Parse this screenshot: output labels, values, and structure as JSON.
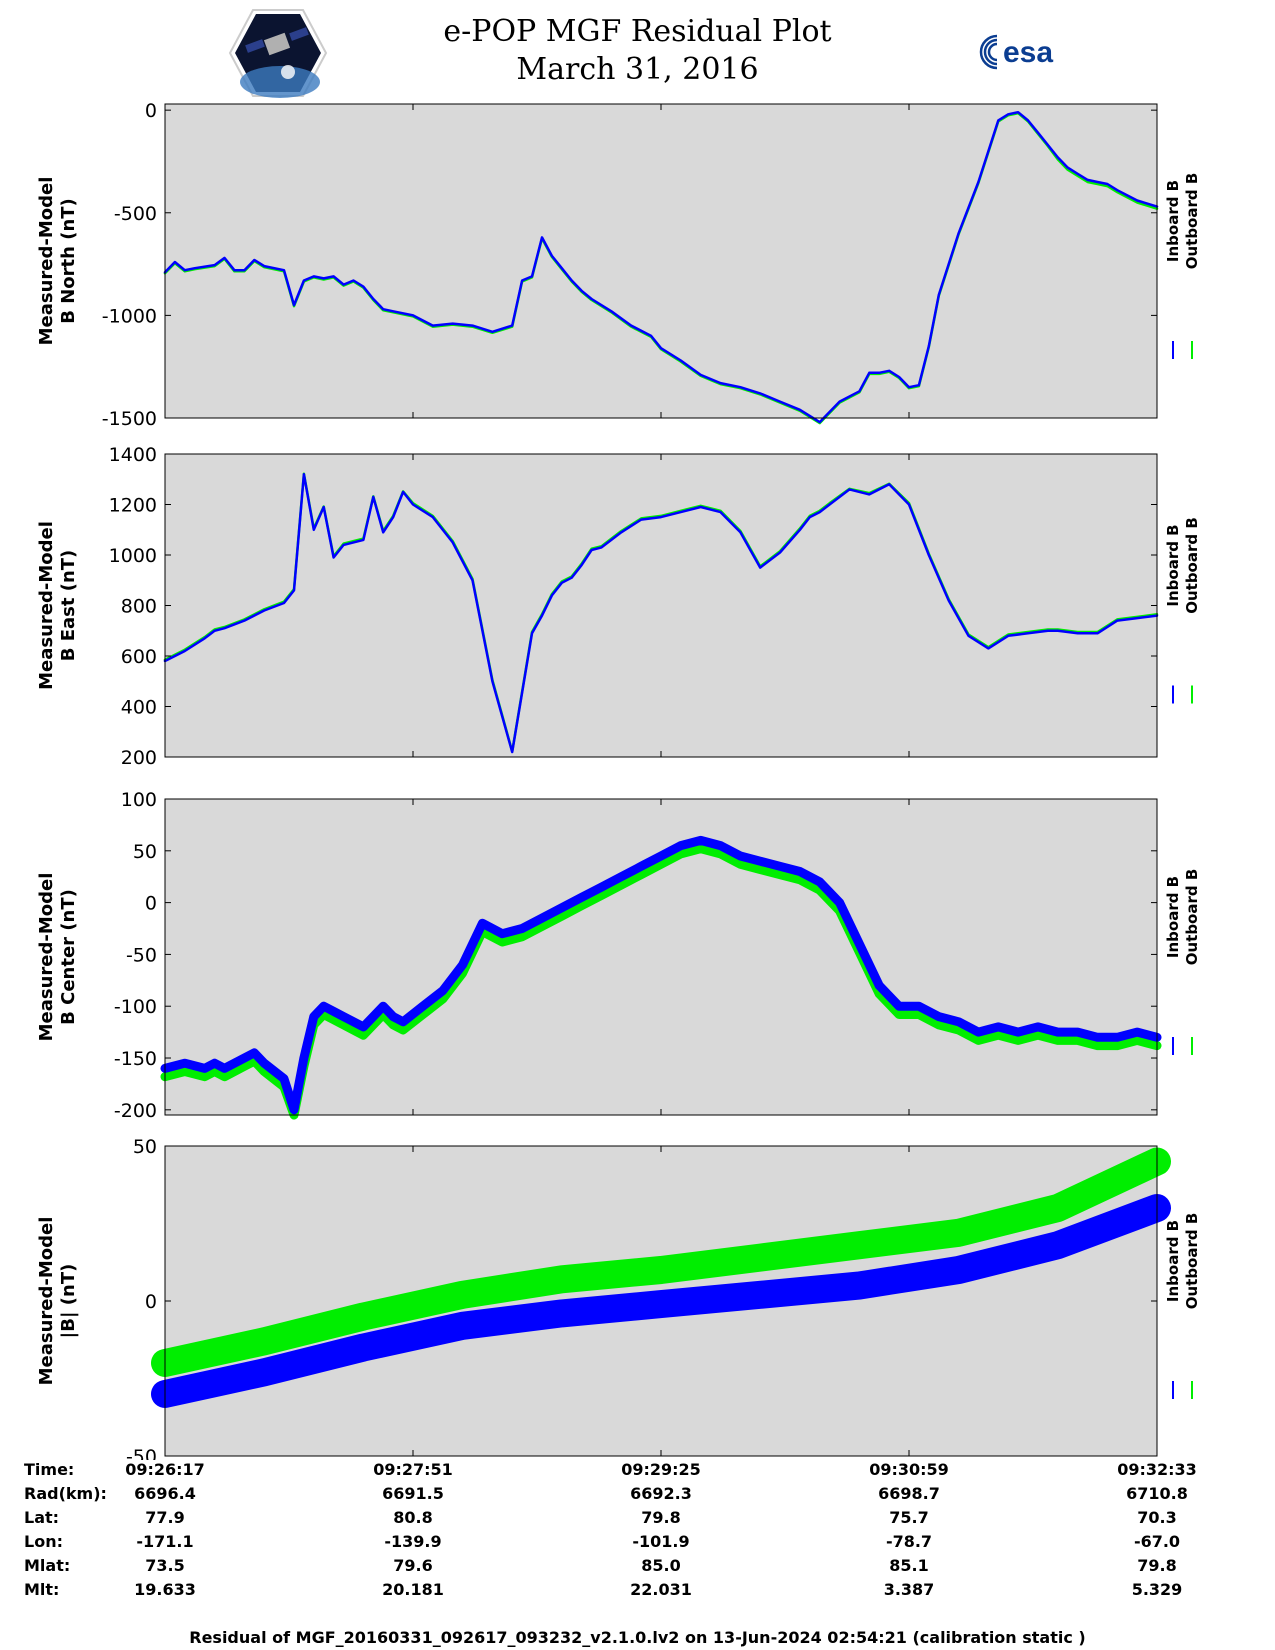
{
  "header": {
    "title": "e-POP MGF Residual Plot",
    "subtitle": "March 31, 2016",
    "left_logo_icon": "epop-satellite-logo",
    "right_logo_text": "esa"
  },
  "colors": {
    "inboard": "#0000ff",
    "outboard": "#00ee00",
    "plot_background": "#d9d9d9"
  },
  "chart_data": [
    {
      "type": "line",
      "ylabel": [
        "Measured-Model",
        "B North (nT)"
      ],
      "ylim": [
        -1500,
        30
      ],
      "yticks": [
        0,
        -500,
        -1000,
        -1500
      ],
      "xlim": [
        0,
        1
      ],
      "legend": [
        "Inboard B",
        "Outboard B"
      ],
      "series": [
        {
          "name": "Inboard B",
          "x": [
            0,
            0.01,
            0.02,
            0.03,
            0.05,
            0.06,
            0.07,
            0.08,
            0.09,
            0.1,
            0.12,
            0.13,
            0.14,
            0.15,
            0.16,
            0.17,
            0.18,
            0.19,
            0.2,
            0.21,
            0.22,
            0.23,
            0.25,
            0.27,
            0.29,
            0.31,
            0.33,
            0.35,
            0.36,
            0.37,
            0.38,
            0.39,
            0.4,
            0.41,
            0.42,
            0.43,
            0.45,
            0.47,
            0.49,
            0.5,
            0.52,
            0.54,
            0.56,
            0.58,
            0.6,
            0.62,
            0.64,
            0.66,
            0.68,
            0.7,
            0.71,
            0.72,
            0.73,
            0.74,
            0.75,
            0.76,
            0.77,
            0.78,
            0.8,
            0.82,
            0.84,
            0.85,
            0.86,
            0.87,
            0.88,
            0.89,
            0.9,
            0.91,
            0.92,
            0.93,
            0.94,
            0.95,
            0.96,
            0.98,
            1.0
          ],
          "values": [
            -790,
            -740,
            -780,
            -770,
            -755,
            -720,
            -780,
            -780,
            -730,
            -760,
            -780,
            -950,
            -830,
            -810,
            -820,
            -810,
            -850,
            -830,
            -860,
            -920,
            -970,
            -980,
            -1000,
            -1050,
            -1040,
            -1050,
            -1080,
            -1050,
            -830,
            -810,
            -620,
            -710,
            -770,
            -830,
            -880,
            -920,
            -980,
            -1050,
            -1100,
            -1160,
            -1220,
            -1290,
            -1330,
            -1350,
            -1380,
            -1420,
            -1460,
            -1520,
            -1420,
            -1370,
            -1280,
            -1280,
            -1270,
            -1300,
            -1350,
            -1340,
            -1150,
            -900,
            -600,
            -350,
            -50,
            -20,
            -10,
            -50,
            -110,
            -170,
            -230,
            -280,
            -310,
            -340,
            -350,
            -360,
            -390,
            -440,
            -470
          ]
        },
        {
          "name": "Outboard B",
          "x": [
            0,
            0.01,
            0.02,
            0.03,
            0.05,
            0.06,
            0.07,
            0.08,
            0.09,
            0.1,
            0.12,
            0.13,
            0.14,
            0.15,
            0.16,
            0.17,
            0.18,
            0.19,
            0.2,
            0.21,
            0.22,
            0.23,
            0.25,
            0.27,
            0.29,
            0.31,
            0.33,
            0.35,
            0.36,
            0.37,
            0.38,
            0.39,
            0.4,
            0.41,
            0.42,
            0.43,
            0.45,
            0.47,
            0.49,
            0.5,
            0.52,
            0.54,
            0.56,
            0.58,
            0.6,
            0.62,
            0.64,
            0.66,
            0.68,
            0.7,
            0.71,
            0.72,
            0.73,
            0.74,
            0.75,
            0.76,
            0.77,
            0.78,
            0.8,
            0.82,
            0.84,
            0.85,
            0.86,
            0.87,
            0.88,
            0.89,
            0.9,
            0.91,
            0.92,
            0.93,
            0.94,
            0.95,
            0.96,
            0.98,
            1.0
          ],
          "values": [
            -795,
            -745,
            -785,
            -775,
            -760,
            -725,
            -785,
            -785,
            -735,
            -765,
            -785,
            -955,
            -835,
            -815,
            -825,
            -815,
            -855,
            -835,
            -865,
            -925,
            -975,
            -985,
            -1005,
            -1055,
            -1045,
            -1055,
            -1085,
            -1055,
            -835,
            -815,
            -625,
            -715,
            -775,
            -835,
            -885,
            -925,
            -985,
            -1055,
            -1105,
            -1165,
            -1225,
            -1295,
            -1335,
            -1355,
            -1385,
            -1425,
            -1465,
            -1525,
            -1425,
            -1375,
            -1285,
            -1285,
            -1275,
            -1305,
            -1355,
            -1345,
            -1155,
            -905,
            -605,
            -355,
            -55,
            -25,
            -15,
            -55,
            -115,
            -175,
            -240,
            -290,
            -320,
            -350,
            -360,
            -370,
            -400,
            -450,
            -480
          ]
        }
      ]
    },
    {
      "type": "line",
      "ylabel": [
        "Measured-Model",
        "B East (nT)"
      ],
      "ylim": [
        200,
        1400
      ],
      "yticks": [
        1400,
        1200,
        1000,
        800,
        600,
        400,
        200
      ],
      "xlim": [
        0,
        1
      ],
      "legend": [
        "Inboard B",
        "Outboard B"
      ],
      "series": [
        {
          "name": "Inboard B",
          "x": [
            0,
            0.02,
            0.04,
            0.05,
            0.06,
            0.08,
            0.1,
            0.12,
            0.13,
            0.14,
            0.15,
            0.16,
            0.17,
            0.18,
            0.19,
            0.2,
            0.21,
            0.22,
            0.23,
            0.24,
            0.25,
            0.27,
            0.29,
            0.31,
            0.33,
            0.35,
            0.37,
            0.38,
            0.39,
            0.4,
            0.41,
            0.42,
            0.43,
            0.44,
            0.46,
            0.48,
            0.5,
            0.52,
            0.54,
            0.56,
            0.58,
            0.6,
            0.62,
            0.64,
            0.65,
            0.66,
            0.67,
            0.69,
            0.71,
            0.73,
            0.75,
            0.77,
            0.79,
            0.81,
            0.83,
            0.85,
            0.87,
            0.89,
            0.9,
            0.92,
            0.94,
            0.96,
            0.98,
            1.0
          ],
          "values": [
            580,
            620,
            670,
            700,
            710,
            740,
            780,
            810,
            860,
            1320,
            1100,
            1190,
            990,
            1040,
            1050,
            1060,
            1230,
            1090,
            1150,
            1250,
            1200,
            1150,
            1050,
            900,
            500,
            220,
            690,
            760,
            840,
            890,
            910,
            960,
            1020,
            1030,
            1090,
            1140,
            1150,
            1170,
            1190,
            1170,
            1090,
            950,
            1010,
            1100,
            1150,
            1170,
            1200,
            1260,
            1240,
            1280,
            1200,
            1000,
            820,
            680,
            630,
            680,
            690,
            700,
            700,
            690,
            690,
            740,
            750,
            760
          ]
        },
        {
          "name": "Outboard B",
          "x": [
            0,
            0.02,
            0.04,
            0.05,
            0.06,
            0.08,
            0.1,
            0.12,
            0.13,
            0.14,
            0.15,
            0.16,
            0.17,
            0.18,
            0.19,
            0.2,
            0.21,
            0.22,
            0.23,
            0.24,
            0.25,
            0.27,
            0.29,
            0.31,
            0.33,
            0.35,
            0.37,
            0.38,
            0.39,
            0.4,
            0.41,
            0.42,
            0.43,
            0.44,
            0.46,
            0.48,
            0.5,
            0.52,
            0.54,
            0.56,
            0.58,
            0.6,
            0.62,
            0.64,
            0.65,
            0.66,
            0.67,
            0.69,
            0.71,
            0.73,
            0.75,
            0.77,
            0.79,
            0.81,
            0.83,
            0.85,
            0.87,
            0.89,
            0.9,
            0.92,
            0.94,
            0.96,
            0.98,
            1.0
          ],
          "values": [
            585,
            625,
            675,
            705,
            715,
            745,
            785,
            815,
            865,
            1322,
            1105,
            1192,
            995,
            1045,
            1055,
            1065,
            1232,
            1095,
            1155,
            1252,
            1205,
            1155,
            1055,
            905,
            505,
            222,
            695,
            765,
            845,
            895,
            915,
            965,
            1025,
            1035,
            1095,
            1145,
            1155,
            1175,
            1195,
            1175,
            1095,
            955,
            1015,
            1105,
            1155,
            1175,
            1205,
            1262,
            1245,
            1282,
            1205,
            1005,
            825,
            685,
            635,
            685,
            695,
            705,
            705,
            695,
            695,
            745,
            755,
            765
          ]
        }
      ]
    },
    {
      "type": "line",
      "ylabel": [
        "Measured-Model",
        "B Center (nT)"
      ],
      "ylim": [
        -205,
        100
      ],
      "yticks": [
        100,
        50,
        0,
        -50,
        -100,
        -150,
        -200
      ],
      "xlim": [
        0,
        1
      ],
      "legend": [
        "Inboard B",
        "Outboard B"
      ],
      "series": [
        {
          "name": "Inboard B",
          "x": [
            0,
            0.02,
            0.04,
            0.05,
            0.06,
            0.08,
            0.09,
            0.1,
            0.12,
            0.13,
            0.14,
            0.15,
            0.16,
            0.17,
            0.18,
            0.2,
            0.22,
            0.23,
            0.24,
            0.26,
            0.28,
            0.3,
            0.32,
            0.34,
            0.36,
            0.38,
            0.4,
            0.42,
            0.44,
            0.46,
            0.48,
            0.5,
            0.52,
            0.54,
            0.56,
            0.58,
            0.6,
            0.62,
            0.64,
            0.66,
            0.68,
            0.7,
            0.72,
            0.74,
            0.76,
            0.78,
            0.8,
            0.82,
            0.84,
            0.86,
            0.88,
            0.9,
            0.92,
            0.94,
            0.96,
            0.98,
            1.0
          ],
          "values": [
            -160,
            -155,
            -160,
            -155,
            -160,
            -150,
            -145,
            -155,
            -170,
            -200,
            -150,
            -110,
            -100,
            -105,
            -110,
            -120,
            -100,
            -110,
            -115,
            -100,
            -85,
            -60,
            -20,
            -30,
            -25,
            -15,
            -5,
            5,
            15,
            25,
            35,
            45,
            55,
            60,
            55,
            45,
            40,
            35,
            30,
            20,
            0,
            -40,
            -80,
            -100,
            -100,
            -110,
            -115,
            -125,
            -120,
            -125,
            -120,
            -125,
            -125,
            -130,
            -130,
            -125,
            -130
          ]
        },
        {
          "name": "Outboard B",
          "x": [
            0,
            0.02,
            0.04,
            0.05,
            0.06,
            0.08,
            0.09,
            0.1,
            0.12,
            0.13,
            0.14,
            0.15,
            0.16,
            0.17,
            0.18,
            0.2,
            0.22,
            0.23,
            0.24,
            0.26,
            0.28,
            0.3,
            0.32,
            0.34,
            0.36,
            0.38,
            0.4,
            0.42,
            0.44,
            0.46,
            0.48,
            0.5,
            0.52,
            0.54,
            0.56,
            0.58,
            0.6,
            0.62,
            0.64,
            0.66,
            0.68,
            0.7,
            0.72,
            0.74,
            0.76,
            0.78,
            0.8,
            0.82,
            0.84,
            0.86,
            0.88,
            0.9,
            0.92,
            0.94,
            0.96,
            0.98,
            1.0
          ],
          "values": [
            -168,
            -163,
            -168,
            -163,
            -168,
            -158,
            -153,
            -163,
            -178,
            -205,
            -158,
            -118,
            -108,
            -113,
            -118,
            -128,
            -108,
            -118,
            -123,
            -108,
            -93,
            -68,
            -28,
            -38,
            -33,
            -23,
            -13,
            -3,
            7,
            17,
            27,
            37,
            47,
            52,
            47,
            37,
            32,
            27,
            22,
            12,
            -8,
            -48,
            -88,
            -108,
            -108,
            -118,
            -123,
            -133,
            -128,
            -133,
            -128,
            -133,
            -133,
            -138,
            -138,
            -133,
            -138
          ]
        }
      ]
    },
    {
      "type": "line",
      "ylabel": [
        "Measured-Model",
        "|B| (nT)"
      ],
      "ylim": [
        -50,
        50
      ],
      "yticks": [
        50,
        0,
        -50
      ],
      "xlim": [
        0,
        1
      ],
      "legend": [
        "Inboard B",
        "Outboard B"
      ],
      "series": [
        {
          "name": "Inboard B",
          "x": [
            0,
            0.1,
            0.2,
            0.3,
            0.4,
            0.5,
            0.6,
            0.7,
            0.8,
            0.9,
            1.0
          ],
          "values": [
            -30,
            -23,
            -15,
            -8,
            -4,
            -1,
            2,
            5,
            10,
            18,
            30
          ]
        },
        {
          "name": "Outboard B",
          "x": [
            0,
            0.1,
            0.2,
            0.3,
            0.4,
            0.5,
            0.6,
            0.7,
            0.8,
            0.9,
            1.0
          ],
          "values": [
            -20,
            -13,
            -5,
            2,
            7,
            10,
            14,
            18,
            22,
            30,
            45
          ]
        }
      ]
    }
  ],
  "info_table": {
    "labels": [
      "Time:",
      "Rad(km):",
      "Lat:",
      "Lon:",
      "Mlat:",
      "Mlt:"
    ],
    "columns": [
      [
        "09:26:17",
        "6696.4",
        "77.9",
        "-171.1",
        "73.5",
        "19.633"
      ],
      [
        "09:27:51",
        "6691.5",
        "80.8",
        "-139.9",
        "79.6",
        "20.181"
      ],
      [
        "09:29:25",
        "6692.3",
        "79.8",
        "-101.9",
        "85.0",
        "22.031"
      ],
      [
        "09:30:59",
        "6698.7",
        "75.7",
        "-78.7",
        "85.1",
        "3.387"
      ],
      [
        "09:32:33",
        "6710.8",
        "70.3",
        "-67.0",
        "79.8",
        "5.329"
      ]
    ]
  },
  "footer": "Residual of MGF_20160331_092617_093232_v2.1.0.lv2 on 13-Jun-2024 02:54:21 (calibration static )"
}
